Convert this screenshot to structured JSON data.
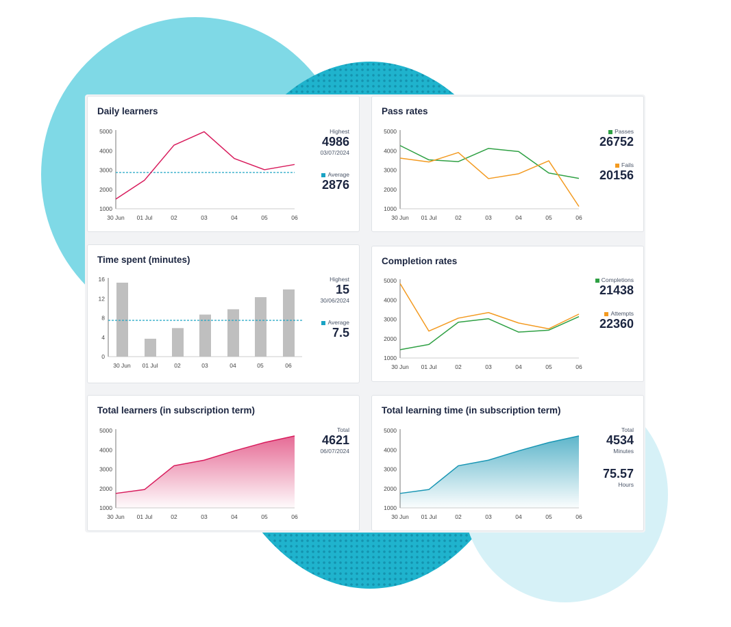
{
  "colors": {
    "pink": "#d81b5c",
    "teal": "#1996b4",
    "green": "#2ea043",
    "orange": "#f39a20",
    "bar": "#bfbfbf",
    "avg": "#1aa3c4"
  },
  "x_ticks": [
    "30 Jun",
    "01 Jul",
    "02",
    "03",
    "04",
    "05",
    "06"
  ],
  "cards": {
    "daily": {
      "title": "Daily learners",
      "highest_label": "Highest",
      "highest_value": "4986",
      "highest_date": "03/07/2024",
      "average_label": "Average",
      "average_value": "2876"
    },
    "pass": {
      "title": "Pass rates",
      "passes_label": "Passes",
      "passes_value": "26752",
      "fails_label": "Fails",
      "fails_value": "20156"
    },
    "time": {
      "title": "Time spent (minutes)",
      "highest_label": "Highest",
      "highest_value": "15",
      "highest_date": "30/06/2024",
      "average_label": "Average",
      "average_value": "7.5"
    },
    "completion": {
      "title": "Completion rates",
      "completions_label": "Completions",
      "completions_value": "21438",
      "attempts_label": "Attempts",
      "attempts_value": "22360"
    },
    "total": {
      "title": "Total learners (in subscription term)",
      "total_label": "Total",
      "total_value": "4621",
      "total_date": "06/07/2024"
    },
    "learning": {
      "title": "Total learning time (in subscription term)",
      "total_label": "Total",
      "minutes_value": "4534",
      "minutes_label": "Minutes",
      "hours_value": "75.57",
      "hours_label": "Hours"
    }
  },
  "chart_data": [
    {
      "id": "daily",
      "type": "line",
      "title": "Daily learners",
      "categories": [
        "30 Jun",
        "01 Jul",
        "02",
        "03",
        "04",
        "05",
        "06"
      ],
      "series": [
        {
          "values": [
            1500,
            2480,
            4290,
            4986,
            3600,
            3020,
            3290
          ]
        }
      ],
      "reference_line": 2876,
      "ylim": [
        1000,
        5000
      ],
      "yticks": [
        1000,
        2000,
        3000,
        4000,
        5000
      ]
    },
    {
      "id": "pass",
      "type": "line",
      "title": "Pass rates",
      "categories": [
        "30 Jun",
        "01 Jul",
        "02",
        "03",
        "04",
        "05",
        "06"
      ],
      "series": [
        {
          "name": "Passes",
          "values": [
            4270,
            3530,
            3440,
            4120,
            3960,
            2850,
            2570
          ]
        },
        {
          "name": "Fails",
          "values": [
            3620,
            3420,
            3910,
            2560,
            2810,
            3480,
            1120
          ]
        }
      ],
      "ylim": [
        1000,
        5000
      ],
      "yticks": [
        1000,
        2000,
        3000,
        4000,
        5000
      ]
    },
    {
      "id": "time",
      "type": "bar",
      "title": "Time spent (minutes)",
      "categories": [
        "30 Jun",
        "01 Jul",
        "02",
        "03",
        "04",
        "05",
        "06"
      ],
      "values": [
        15.3,
        3.7,
        5.9,
        8.7,
        9.8,
        12.3,
        13.9
      ],
      "reference_line": 7.5,
      "ylim": [
        0,
        16
      ],
      "yticks": [
        0,
        4,
        8,
        12,
        16
      ]
    },
    {
      "id": "completion",
      "type": "line",
      "title": "Completion rates",
      "categories": [
        "30 Jun",
        "01 Jul",
        "02",
        "03",
        "04",
        "05",
        "06"
      ],
      "series": [
        {
          "name": "Completions",
          "values": [
            1430,
            1700,
            2850,
            3030,
            2340,
            2440,
            3140
          ]
        },
        {
          "name": "Attempts",
          "values": [
            4850,
            2390,
            3060,
            3350,
            2810,
            2510,
            3270
          ]
        }
      ],
      "ylim": [
        1000,
        5000
      ],
      "yticks": [
        1000,
        2000,
        3000,
        4000,
        5000
      ]
    },
    {
      "id": "total",
      "type": "area",
      "title": "Total learners (in subscription term)",
      "categories": [
        "30 Jun",
        "01 Jul",
        "02",
        "03",
        "04",
        "05",
        "06"
      ],
      "series": [
        {
          "values": [
            1750,
            1950,
            3180,
            3470,
            3950,
            4380,
            4720
          ]
        }
      ],
      "ylim": [
        1000,
        5000
      ],
      "yticks": [
        1000,
        2000,
        3000,
        4000,
        5000
      ]
    },
    {
      "id": "learning",
      "type": "area",
      "title": "Total learning time (in subscription term)",
      "categories": [
        "30 Jun",
        "01 Jul",
        "02",
        "03",
        "04",
        "05",
        "06"
      ],
      "series": [
        {
          "values": [
            1750,
            1950,
            3180,
            3470,
            3950,
            4380,
            4720
          ]
        }
      ],
      "ylim": [
        1000,
        5000
      ],
      "yticks": [
        1000,
        2000,
        3000,
        4000,
        5000
      ]
    }
  ]
}
